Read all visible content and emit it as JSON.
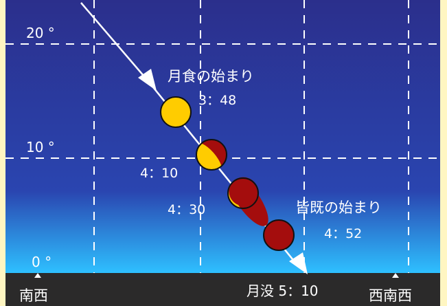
{
  "colors": {
    "frame": "#fff6c2",
    "sky_top": "#2b2f8c",
    "sky_mid": "#2a45b0",
    "sky_horizon": "#2ec0ff",
    "ground": "#2b2a2a",
    "moon_lit": "#ffcc00",
    "moon_shadow": "#a40d0d",
    "grid": "#ffffff",
    "path": "#ffffff"
  },
  "altitude_labels": {
    "alt_20": "20 °",
    "alt_10": "10 °",
    "alt_0": "0 °"
  },
  "direction_labels": {
    "sw": "南西",
    "wsw": "西南西"
  },
  "events": {
    "eclipse_start_label": "月食の始まり",
    "eclipse_start_time": "3：48",
    "time_410": "4：10",
    "time_430": "4：30",
    "totality_start_label": "皆既の始まり",
    "totality_start_time": "4：52",
    "moonset": "月没 5：10"
  },
  "moon_phases": {
    "t_348": 1.0,
    "t_410": 0.55,
    "t_430": 0.35,
    "t_452": 0.0
  }
}
